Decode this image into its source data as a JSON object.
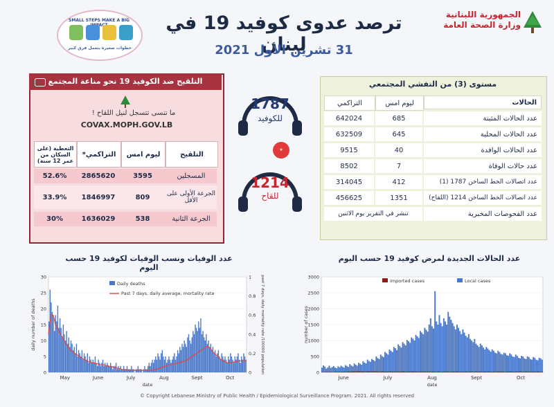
{
  "header": {
    "title": "ترصد عدوى كوفيد 19 في لبنان",
    "date": "31 تشرين الأول 2021",
    "ministry_line1": "الجمهورية اللبنانية",
    "ministry_line2": "وزارة الصحة العامة",
    "logo_top": "SMALL STEPS MAKE A BIG IMPACT",
    "logo_bottom": "خطوات صغيرة بتعمل فرق كبير"
  },
  "vaccination": {
    "title": "التلقيح ضد الكوفيد 19  نحو مناعة المجتمع",
    "question": "ما تنسى تتسجل لنيل اللقاح !",
    "url": "COVAX.MOPH.GOV.LB",
    "headers": [
      "التلقيح",
      "ليوم امس",
      "التراكمي*",
      "التغطية (على السكان من عمر 12 سنة)"
    ],
    "rows": [
      {
        "label": "المسجلين",
        "yesterday": "3595",
        "cumulative": "2865620",
        "coverage": "52.6%"
      },
      {
        "label": "الجرعة الأولى على الأقل",
        "yesterday": "809",
        "cumulative": "1846997",
        "coverage": "33.9%"
      },
      {
        "label": "الجرعة الثانية",
        "yesterday": "538",
        "cumulative": "1636029",
        "coverage": "30%"
      }
    ]
  },
  "hotlines": [
    {
      "number": "1787",
      "label": "للكوفيد"
    },
    {
      "number": "1214",
      "label": "للقاح"
    }
  ],
  "stats": {
    "title": "مستوى (3) من التفشي المجتمعي",
    "headers": [
      "الحالات",
      "ليوم امس",
      "التراكمي"
    ],
    "rows": [
      {
        "label": "عدد الحالات المثبتة",
        "yesterday": "685",
        "cumulative": "642024"
      },
      {
        "label": "عدد الحالات المحلية",
        "yesterday": "645",
        "cumulative": "632509"
      },
      {
        "label": "عدد الحالات الوافدة",
        "yesterday": "40",
        "cumulative": "9515"
      },
      {
        "label": "عدد حالات الوفاة",
        "yesterday": "7",
        "cumulative": "8502"
      },
      {
        "label": "عدد اتصالات الخط الساخن 1787  (1)",
        "yesterday": "412",
        "cumulative": "314045"
      },
      {
        "label": "عدد اتصالات الخط الساخن 1214 (اللقاح)",
        "yesterday": "1351",
        "cumulative": "456625"
      },
      {
        "label": "عدد الفحوصات المخبرية",
        "merged": "تنشر في التقرير يوم الاثنين"
      }
    ]
  },
  "chart_data": [
    {
      "type": "bar",
      "title": "عدد الوفيات ونسب الوفيات لكوفيد 19 حسب اليوم",
      "xlabel": "date",
      "ylabel": "daily number of deaths",
      "y2label": "past 7 days, daily mortality rate /100000 population",
      "ylim": [
        0,
        30
      ],
      "y2lim": [
        0,
        1
      ],
      "y2ticks": [
        "0",
        "0.2",
        "0.4",
        "0.6",
        "0.8",
        "1"
      ],
      "yticks": [
        "0",
        "5",
        "10",
        "15",
        "20",
        "25",
        "30"
      ],
      "month_labels": [
        "May",
        "June",
        "July",
        "Aug",
        "Sept",
        "Oct"
      ],
      "series": [
        {
          "name": "Daily deaths",
          "color": "#4a78c9",
          "values": [
            16,
            26,
            22,
            19,
            18,
            13,
            18,
            16,
            21,
            14,
            17,
            14,
            11,
            15,
            12,
            10,
            13,
            9,
            11,
            8,
            10,
            9,
            7,
            8,
            6,
            9,
            5,
            7,
            6,
            5,
            7,
            4,
            6,
            5,
            4,
            6,
            3,
            5,
            4,
            3,
            4,
            3,
            5,
            3,
            2,
            4,
            3,
            2,
            3,
            4,
            2,
            3,
            2,
            3,
            2,
            2,
            3,
            2,
            1,
            2,
            2,
            3,
            1,
            2,
            1,
            2,
            1,
            1,
            2,
            1,
            1,
            2,
            1,
            1,
            1,
            2,
            1,
            1,
            0,
            1,
            1,
            2,
            1,
            1,
            1,
            0,
            1,
            2,
            1,
            1,
            2,
            3,
            2,
            3,
            4,
            3,
            4,
            5,
            4,
            6,
            5,
            4,
            6,
            7,
            5,
            4,
            5,
            3,
            4,
            5,
            4,
            3,
            4,
            5,
            6,
            4,
            5,
            7,
            6,
            8,
            7,
            9,
            8,
            10,
            9,
            8,
            11,
            12,
            10,
            9,
            11,
            13,
            12,
            15,
            14,
            13,
            16,
            14,
            17,
            12,
            13,
            11,
            10,
            12,
            9,
            10,
            8,
            9,
            7,
            8,
            6,
            7,
            5,
            6,
            7,
            5,
            4,
            6,
            5,
            4,
            5,
            4,
            3,
            5,
            4,
            6,
            5,
            4,
            3,
            5,
            4,
            5,
            6,
            4,
            3,
            5,
            4,
            6,
            5,
            4
          ]
        },
        {
          "name": "Past 7 days, daily average, mortality rate",
          "color": "#e04848",
          "values": [
            0.4,
            0.52,
            0.6,
            0.6,
            0.57,
            0.5,
            0.47,
            0.45,
            0.42,
            0.39,
            0.37,
            0.34,
            0.31,
            0.29,
            0.27,
            0.25,
            0.23,
            0.22,
            0.21,
            0.2,
            0.19,
            0.18,
            0.17,
            0.16,
            0.15,
            0.14,
            0.13,
            0.12,
            0.12,
            0.11,
            0.11,
            0.1,
            0.1,
            0.1,
            0.09,
            0.09,
            0.09,
            0.08,
            0.08,
            0.08,
            0.08,
            0.07,
            0.07,
            0.07,
            0.06,
            0.06,
            0.06,
            0.05,
            0.05,
            0.05,
            0.04,
            0.04,
            0.04,
            0.03,
            0.03,
            0.03,
            0.03,
            0.02,
            0.02,
            0.02,
            0.02,
            0.02,
            0.02,
            0.02,
            0.02,
            0.02,
            0.02,
            0.02,
            0.02,
            0.02,
            0.02,
            0.02,
            0.02,
            0.02,
            0.02,
            0.02,
            0.03,
            0.03,
            0.03,
            0.04,
            0.04,
            0.05,
            0.05,
            0.06,
            0.06,
            0.07,
            0.07,
            0.08,
            0.08,
            0.08,
            0.09,
            0.09,
            0.09,
            0.1,
            0.1,
            0.1,
            0.11,
            0.11,
            0.12,
            0.12,
            0.13,
            0.14,
            0.15,
            0.16,
            0.17,
            0.18,
            0.19,
            0.2,
            0.21,
            0.22,
            0.23,
            0.24,
            0.25,
            0.26,
            0.27,
            0.27,
            0.26,
            0.25,
            0.23,
            0.21,
            0.2,
            0.18,
            0.17,
            0.15,
            0.14,
            0.13,
            0.12,
            0.11,
            0.11,
            0.1,
            0.1,
            0.1,
            0.1,
            0.1,
            0.11,
            0.11,
            0.11,
            0.12,
            0.12,
            0.12,
            0.12,
            0.12,
            0.12,
            0.12
          ]
        }
      ]
    },
    {
      "type": "bar",
      "title": "عدد الحالات الجديدة لمرض كوفيد 19 حسب اليوم",
      "xlabel": "date",
      "ylabel": "number of cases",
      "ylim": [
        0,
        3000
      ],
      "yticks": [
        "0",
        "500",
        "1000",
        "1500",
        "2000",
        "2500",
        "3000"
      ],
      "month_labels": [
        "June",
        "July",
        "Aug",
        "Sept",
        "Oct"
      ],
      "series": [
        {
          "name": "imported cases",
          "color": "#8b1a1a",
          "values": [
            10,
            12,
            8,
            15,
            10,
            12,
            14,
            10,
            12,
            15,
            18,
            20,
            16,
            22,
            18,
            25,
            20,
            24,
            28,
            22,
            30,
            26,
            32,
            28,
            30,
            35,
            28,
            32,
            30,
            26,
            28,
            34,
            30,
            28,
            26,
            30,
            32,
            28,
            26,
            24,
            28,
            30,
            26,
            24,
            28,
            26,
            30,
            28,
            24,
            26,
            22,
            28,
            24,
            26,
            30,
            28,
            26,
            22,
            24,
            28,
            26,
            30,
            28,
            24,
            26,
            22,
            28,
            24,
            26,
            30,
            22,
            26,
            28,
            24,
            20,
            26,
            24,
            22,
            28,
            26,
            20,
            24,
            22,
            26,
            28,
            24,
            22,
            20,
            24,
            26,
            22,
            28,
            24,
            20,
            26,
            22,
            24,
            28,
            20,
            22,
            26,
            24,
            20,
            22,
            28,
            24,
            26,
            22,
            20,
            24,
            26,
            22,
            28,
            20,
            24,
            22,
            26,
            20,
            24,
            28,
            22,
            26,
            24,
            20,
            22,
            24,
            26,
            28,
            22,
            20,
            24,
            26,
            22,
            28,
            24,
            20,
            22,
            26,
            24,
            28,
            22,
            20,
            24,
            26,
            22,
            28,
            24,
            20,
            22
          ]
        },
        {
          "name": "Local cases",
          "color": "#4a78c9",
          "values": [
            150,
            220,
            180,
            120,
            160,
            210,
            140,
            170,
            200,
            150,
            130,
            190,
            160,
            210,
            180,
            150,
            230,
            200,
            170,
            260,
            220,
            190,
            280,
            240,
            210,
            300,
            270,
            240,
            350,
            310,
            280,
            400,
            360,
            330,
            420,
            390,
            360,
            500,
            450,
            420,
            560,
            510,
            480,
            640,
            600,
            560,
            720,
            680,
            640,
            800,
            760,
            700,
            880,
            830,
            780,
            950,
            900,
            850,
            1020,
            980,
            930,
            1100,
            1060,
            1000,
            1180,
            1130,
            1080,
            1300,
            1250,
            1200,
            1400,
            1340,
            1280,
            1500,
            1700,
            1450,
            1380,
            2550,
            1600,
            1500,
            1800,
            1550,
            1450,
            1700,
            1600,
            1500,
            1900,
            1750,
            1650,
            1550,
            1450,
            1350,
            1500,
            1400,
            1300,
            1200,
            1350,
            1250,
            1150,
            1100,
            1200,
            1050,
            1000,
            950,
            1050,
            900,
            850,
            800,
            900,
            850,
            780,
            720,
            800,
            750,
            700,
            650,
            720,
            680,
            620,
            600,
            680,
            640,
            580,
            560,
            620,
            600,
            540,
            520,
            600,
            560,
            500,
            480,
            560,
            520,
            460,
            440,
            520,
            500,
            440,
            420,
            500,
            480,
            420,
            400,
            480,
            460,
            400,
            380,
            460,
            440,
            400
          ]
        }
      ]
    }
  ],
  "copyright": "© Copyright Lebanese Ministry of Public Health / Epidemiological Surveillance Program. 2021. All rights reserved"
}
